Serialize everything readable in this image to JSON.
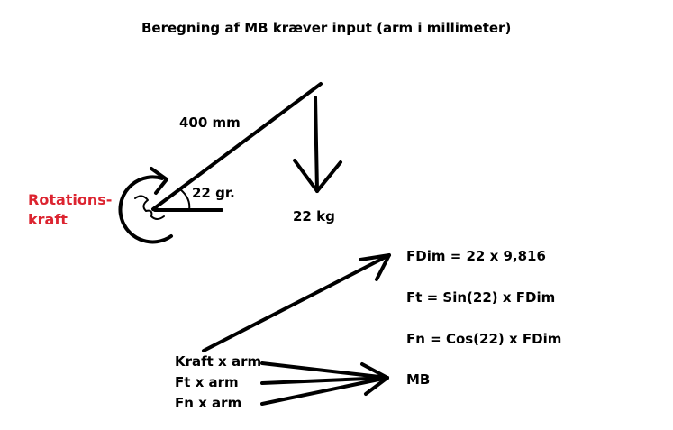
{
  "diagram": {
    "title": "Beregning af MB kræver input (arm i millimeter)",
    "arm_length_label": "400 mm",
    "angle_label": "22 gr.",
    "weight_label": "22 kg",
    "rotation_label_line1": "Rotations-",
    "rotation_label_line2": "kraft",
    "rotation_label_color": "#dc2430",
    "line_color": "#000000"
  },
  "formulas": {
    "fdim": "FDim = 22 x 9,816",
    "ft": "Ft = Sin(22) x FDim",
    "fn": "Fn = Cos(22) x FDim",
    "mb": "MB"
  },
  "mb_terms": [
    "Kraft x arm",
    "Ft x arm",
    "Fn x arm"
  ]
}
